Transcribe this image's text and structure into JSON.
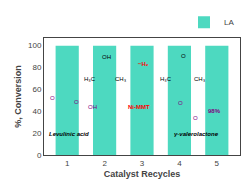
{
  "chart_data": {
    "type": "bar",
    "x": [
      1,
      2,
      3,
      4,
      5
    ],
    "series": [
      {
        "name": "LA",
        "color": "#4DD9C0",
        "values": [
          100,
          100,
          100,
          100,
          100
        ]
      }
    ],
    "xlabel": "Catalyst Recycles",
    "ylabel": "%, Conversion",
    "xlim": [
      0.38,
      5.62
    ],
    "xticks": [
      1,
      2,
      3,
      4,
      5
    ],
    "ylim": [
      0,
      107
    ],
    "yticks": [
      0,
      20,
      40,
      60,
      80,
      100
    ],
    "grid": false,
    "legend": "upper right",
    "annotations": [
      {
        "text": "OH",
        "color": "black"
      },
      {
        "text": "H₃C",
        "color": "black"
      },
      {
        "text": "CH₃",
        "color": "black"
      },
      {
        "text": "O",
        "color": "black"
      },
      {
        "text": "H₃C",
        "color": "black"
      },
      {
        "text": "CH₃",
        "color": "black"
      },
      {
        "text": "−H₂",
        "color": "red"
      },
      {
        "text": "O",
        "color": "purple"
      },
      {
        "text": "O",
        "color": "purple"
      },
      {
        "text": "OH",
        "color": "purple"
      },
      {
        "text": "Levulinic acid",
        "color": "black"
      },
      {
        "text": "Ni-MMT",
        "color": "red"
      },
      {
        "text": "O",
        "color": "purple"
      },
      {
        "text": "O",
        "color": "purple"
      },
      {
        "text": "98%",
        "color": "purple"
      },
      {
        "text": "γ-valerolactone",
        "color": "black"
      }
    ]
  }
}
